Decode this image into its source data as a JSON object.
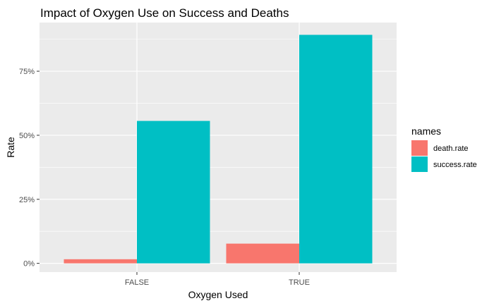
{
  "chart_data": {
    "type": "bar",
    "title": "Impact of Oxygen Use on Success and Deaths",
    "xlabel": "Oxygen Used",
    "ylabel": "Rate",
    "categories": [
      "FALSE",
      "TRUE"
    ],
    "series": [
      {
        "name": "death.rate",
        "values": [
          0.016,
          0.077
        ],
        "color": "#F8766D"
      },
      {
        "name": "success.rate",
        "values": [
          0.556,
          0.892
        ],
        "color": "#00BFC4"
      }
    ],
    "ylim": [
      -0.034,
      0.94
    ],
    "yticks": [
      0,
      0.25,
      0.5,
      0.75
    ],
    "ytick_labels": [
      "0%",
      "25%",
      "50%",
      "75%"
    ],
    "legend": {
      "title": "names",
      "position": "right"
    },
    "grid": true,
    "panel_background": "#EBEBEB"
  }
}
